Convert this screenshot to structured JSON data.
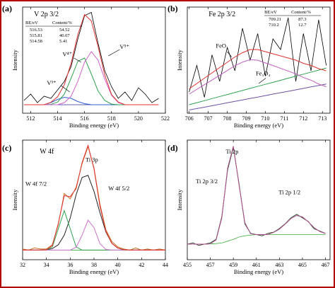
{
  "chart_data": [
    {
      "type": "line",
      "label": "(a)",
      "title": "V 2p 3/2",
      "xlabel": "Binding energy (eV)",
      "ylabel": "Intensity",
      "table": {
        "columns": [
          "BE/eV",
          "Content/%"
        ],
        "rows": [
          [
            "516.53",
            "54.52"
          ],
          [
            "515.81",
            "40.07"
          ],
          [
            "514.58",
            "5.41"
          ]
        ]
      },
      "annotations": [
        "V⁵⁺",
        "V⁴⁺",
        "V³⁺"
      ],
      "xlim": [
        511.4,
        522
      ],
      "xticks": [
        512,
        514,
        516,
        518,
        520,
        522
      ],
      "ylim": [
        0,
        100
      ],
      "x": [
        511.5,
        512,
        512.5,
        513,
        513.5,
        514,
        514.5,
        515,
        515.5,
        516,
        516.5,
        517,
        517.5,
        518,
        518.5,
        519,
        519.5,
        520,
        520.5,
        521,
        521.5
      ],
      "series": [
        {
          "color": "#000000",
          "values": [
            12,
            18,
            10,
            16,
            14,
            22,
            30,
            44,
            70,
            92,
            95,
            66,
            40,
            25,
            14,
            20,
            12,
            24,
            18,
            10,
            14
          ]
        },
        {
          "color": "#6060b0",
          "values": [
            8,
            8,
            8,
            8,
            8,
            8,
            8,
            8,
            8,
            8,
            8,
            8,
            8,
            8,
            8,
            8,
            8,
            8,
            8,
            8,
            8
          ]
        },
        {
          "color": "#3060d0",
          "values": [
            8,
            8,
            8,
            8,
            10,
            13,
            15,
            14,
            11,
            9,
            8,
            8,
            8,
            8,
            8,
            8,
            8,
            8,
            8,
            8,
            8
          ]
        },
        {
          "color": "#30a050",
          "values": [
            8,
            8,
            8,
            8,
            8.3,
            10.5,
            18,
            33,
            49,
            52,
            37,
            21,
            12,
            8.6,
            8,
            8,
            8,
            8,
            8,
            8,
            8
          ]
        },
        {
          "color": "#d060d0",
          "values": [
            8,
            8,
            8,
            8,
            8,
            8,
            10,
            16,
            30,
            48,
            58,
            50,
            32,
            17,
            10,
            8,
            8,
            8,
            8,
            8,
            8
          ]
        },
        {
          "color": "#e03030",
          "values": [
            8,
            8,
            8,
            8,
            10.3,
            15.5,
            27,
            47,
            74,
            93,
            87,
            63,
            36,
            17.6,
            10.5,
            8,
            8,
            8,
            8,
            8,
            8
          ]
        }
      ]
    },
    {
      "type": "line",
      "label": "(b)",
      "title": "Fe 2p 3/2",
      "xlabel": "Binding energy (eV)",
      "ylabel": "Intensity",
      "table": {
        "columns": [
          "BE/eV",
          "Content/%"
        ],
        "rows": [
          [
            "709.21",
            "87.3"
          ],
          [
            "710.2",
            "12.7"
          ]
        ]
      },
      "annotations": [
        "FeO",
        "Fe₃O₄"
      ],
      "xlim": [
        705.9,
        713.4
      ],
      "xticks": [
        706,
        707,
        708,
        709,
        710,
        711,
        712,
        713
      ],
      "ylim": [
        0,
        100
      ],
      "x": [
        706,
        706.4,
        706.8,
        707.2,
        707.6,
        708,
        708.4,
        708.8,
        709.2,
        709.6,
        710,
        710.4,
        710.8,
        711.2,
        711.6,
        712,
        712.4,
        712.8,
        713.2
      ],
      "series": [
        {
          "color": "#000000",
          "values": [
            20,
            45,
            15,
            55,
            30,
            62,
            40,
            80,
            50,
            75,
            35,
            70,
            60,
            90,
            30,
            75,
            40,
            88,
            45
          ]
        },
        {
          "color": "#7050a0",
          "values": [
            3,
            4.4,
            5.7,
            7.1,
            8.4,
            9.8,
            11.2,
            12.5,
            13.9,
            15.2,
            16.6,
            18,
            19.3,
            20.7,
            22,
            23.4,
            24.8,
            26.1,
            27.5
          ]
        },
        {
          "color": "#30a050",
          "values": [
            8,
            9.9,
            11.8,
            13.8,
            15.7,
            17.6,
            19.5,
            21.4,
            23.4,
            25.3,
            27.2,
            29.1,
            31,
            33,
            34.9,
            36.8,
            38.7,
            40.6,
            42.6
          ]
        },
        {
          "color": "#c060c0",
          "values": [
            18,
            22.5,
            26.9,
            31.3,
            35.7,
            40.2,
            44.7,
            48.1,
            50.5,
            49.9,
            47.4,
            44.9,
            42.3,
            39.7,
            37.1,
            33.6,
            31.1,
            27.5,
            24.9
          ]
        },
        {
          "color": "#e03030",
          "values": [
            23,
            28,
            33,
            38,
            43,
            48,
            53,
            57,
            60,
            60,
            58,
            56,
            54,
            52,
            50,
            47,
            45,
            42,
            40
          ]
        }
      ]
    },
    {
      "type": "line",
      "label": "(c)",
      "title": "W 4f",
      "xlabel": "Binding energy (eV)",
      "ylabel": "Intensity",
      "annotations": [
        "Ti 3p",
        "W 4f 7/2",
        "W 4f 5/2"
      ],
      "xlim": [
        32,
        44
      ],
      "xticks": [
        32,
        34,
        36,
        38,
        40,
        42,
        44
      ],
      "ylim": [
        0,
        112
      ],
      "x": [
        32,
        32.5,
        33,
        33.5,
        34,
        34.5,
        35,
        35.5,
        36,
        36.5,
        37,
        37.5,
        38,
        38.5,
        39,
        39.5,
        40,
        40.5,
        41,
        41.5,
        42,
        42.5,
        43,
        43.5,
        44
      ],
      "series": [
        {
          "color": "#30b040",
          "values": [
            9,
            9,
            9,
            9,
            9,
            9,
            9,
            9,
            9,
            9,
            9,
            9,
            9,
            9,
            9,
            9,
            9,
            9,
            9,
            9,
            9,
            9,
            9,
            9,
            9
          ]
        },
        {
          "color": "#222222",
          "values": [
            9,
            9,
            9,
            9,
            9.3,
            10.4,
            14,
            23,
            39,
            61,
            77,
            79,
            64,
            44,
            26,
            15.3,
            10.8,
            9.4,
            9,
            9,
            9,
            9,
            9,
            9,
            9
          ]
        },
        {
          "color": "#30a050",
          "values": [
            9,
            9,
            9,
            9,
            9,
            12,
            29,
            46,
            29,
            12,
            9,
            9,
            9,
            9,
            9,
            9,
            9,
            9,
            9,
            9,
            9,
            9,
            9,
            9,
            9
          ]
        },
        {
          "color": "#d070d0",
          "values": [
            9,
            9,
            9,
            9,
            9,
            9,
            9,
            9,
            9,
            11.6,
            23,
            37,
            30,
            15,
            9.6,
            9,
            9,
            9,
            9,
            9,
            9,
            9,
            9,
            9,
            9
          ]
        },
        {
          "color": "#c87020",
          "values": [
            10,
            9,
            11,
            10,
            10,
            14,
            33,
            62,
            57,
            68,
            90,
            106,
            86,
            52,
            28,
            17,
            12,
            10,
            9,
            11,
            9,
            10,
            9,
            10,
            9
          ]
        },
        {
          "color": "#e03030",
          "values": [
            9,
            9,
            9,
            9,
            9.3,
            13.4,
            34,
            60,
            59,
            66.6,
            91,
            107,
            85,
            50,
            26.6,
            15.3,
            10.8,
            9.4,
            9,
            9,
            9,
            9,
            9,
            9,
            9
          ]
        }
      ]
    },
    {
      "type": "line",
      "label": "(d)",
      "xlabel": "Binding energy (eV)",
      "ylabel": "Intensity",
      "annotations": [
        "Ti 2p",
        "Ti 2p 3/2",
        "Ti 2p 1/2"
      ],
      "xlim": [
        455,
        467.4
      ],
      "xticks": [
        455,
        457,
        459,
        461,
        463,
        465,
        467
      ],
      "ylim": [
        0,
        100
      ],
      "x": [
        455,
        455.5,
        456,
        456.5,
        457,
        457.5,
        458,
        458.5,
        459,
        459.5,
        460,
        460.5,
        461,
        461.5,
        462,
        462.5,
        463,
        463.5,
        464,
        464.5,
        465,
        465.5,
        466,
        466.5,
        467
      ],
      "series": [
        {
          "color": "#40b040",
          "values": [
            13,
            13,
            13,
            13,
            13.2,
            13.5,
            14,
            15.5,
            17,
            19,
            20,
            20.5,
            21,
            21,
            21,
            21,
            21,
            21,
            21,
            21,
            21,
            21,
            21,
            21,
            21
          ]
        },
        {
          "color": "#2a4a2a",
          "values": [
            13,
            14,
            12,
            13,
            14,
            17,
            36,
            75,
            94,
            63,
            30,
            22,
            21,
            20,
            22,
            23,
            26,
            30,
            35,
            38,
            35,
            32,
            26,
            24,
            22
          ]
        },
        {
          "color": "#b05090",
          "values": [
            13,
            13,
            13,
            13,
            13.2,
            16.5,
            35,
            76.5,
            95,
            62,
            31,
            21.7,
            21,
            21,
            21,
            22.8,
            25.5,
            29.7,
            34.4,
            37,
            35.8,
            31.7,
            27,
            23.6,
            21.9
          ]
        }
      ]
    }
  ]
}
